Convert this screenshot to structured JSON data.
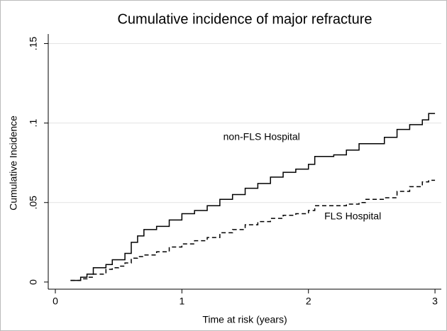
{
  "chart_data": {
    "type": "step",
    "title": "Cumulative incidence of major refracture",
    "x_label": "Time at risk (years)",
    "y_label": "Cumulative Incidence",
    "x": [
      0.12,
      0.2,
      0.25,
      0.3,
      0.4,
      0.45,
      0.5,
      0.55,
      0.6,
      0.65,
      0.7,
      0.8,
      0.9,
      1.0,
      1.1,
      1.2,
      1.3,
      1.4,
      1.5,
      1.6,
      1.7,
      1.8,
      1.9,
      2.0,
      2.05,
      2.2,
      2.3,
      2.4,
      2.45,
      2.6,
      2.7,
      2.8,
      2.9,
      2.95,
      3.0
    ],
    "series": [
      {
        "name": "non-FLS Hospital",
        "color": "#000000",
        "line_style": "solid",
        "values": [
          0.001,
          0.003,
          0.005,
          0.009,
          0.011,
          0.014,
          0.014,
          0.018,
          0.025,
          0.029,
          0.033,
          0.035,
          0.039,
          0.043,
          0.045,
          0.048,
          0.052,
          0.055,
          0.059,
          0.062,
          0.066,
          0.069,
          0.071,
          0.074,
          0.079,
          0.08,
          0.083,
          0.087,
          0.087,
          0.091,
          0.096,
          0.099,
          0.102,
          0.106,
          0.106
        ]
      },
      {
        "name": "FLS Hospital",
        "color": "#000000",
        "line_style": "dashed",
        "values": [
          0.001,
          0.002,
          0.003,
          0.005,
          0.008,
          0.009,
          0.01,
          0.012,
          0.015,
          0.016,
          0.017,
          0.019,
          0.022,
          0.024,
          0.026,
          0.028,
          0.031,
          0.033,
          0.036,
          0.038,
          0.04,
          0.042,
          0.043,
          0.045,
          0.048,
          0.048,
          0.049,
          0.05,
          0.052,
          0.053,
          0.057,
          0.06,
          0.063,
          0.064,
          0.064
        ]
      }
    ],
    "xlim": [
      -0.056,
      3.05
    ],
    "ylim": [
      -0.0045,
      0.156
    ],
    "xticks": [
      0,
      1,
      2,
      3
    ],
    "yticks": [
      0,
      {
        "value": 0.05,
        "label": ".05"
      },
      {
        "value": 0.1,
        "label": ".1"
      },
      {
        "value": 0.15,
        "label": ".15"
      }
    ],
    "grid": true
  }
}
